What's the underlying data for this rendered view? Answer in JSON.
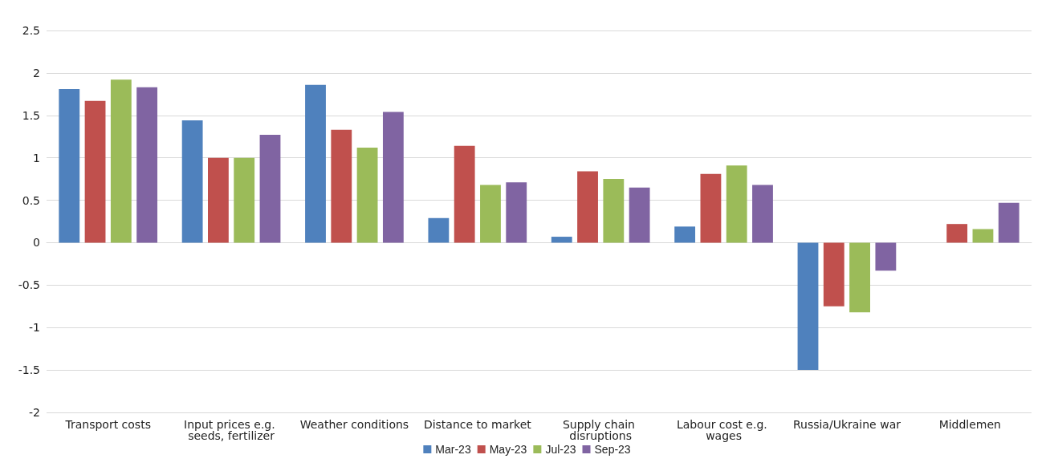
{
  "chart_data": {
    "type": "bar",
    "categories": [
      "Transport costs",
      "Input prices e.g. seeds, fertilizer",
      "Weather conditions",
      "Distance to market",
      "Supply chain disruptions",
      "Labour cost e.g. wages",
      "Russia/Ukraine war",
      "Middlemen"
    ],
    "series": [
      {
        "name": "Mar-23",
        "color": "#4f81bd",
        "values": [
          1.81,
          1.44,
          1.86,
          0.29,
          0.07,
          0.19,
          -1.5,
          null
        ]
      },
      {
        "name": "May-23",
        "color": "#c0504d",
        "values": [
          1.67,
          1.0,
          1.33,
          1.14,
          0.84,
          0.81,
          -0.75,
          0.22
        ]
      },
      {
        "name": "Jul-23",
        "color": "#9bbb59",
        "values": [
          1.92,
          1.0,
          1.12,
          0.68,
          0.75,
          0.91,
          -0.82,
          0.16
        ]
      },
      {
        "name": "Sep-23",
        "color": "#8064a2",
        "values": [
          1.83,
          1.27,
          1.54,
          0.71,
          0.65,
          0.68,
          -0.33,
          0.47
        ]
      }
    ],
    "ylim": [
      -2,
      2.5
    ],
    "yticks": [
      -2,
      -1.5,
      -1,
      -0.5,
      0,
      0.5,
      1,
      1.5,
      2,
      2.5
    ],
    "grid": "y",
    "legend": "bottom"
  }
}
